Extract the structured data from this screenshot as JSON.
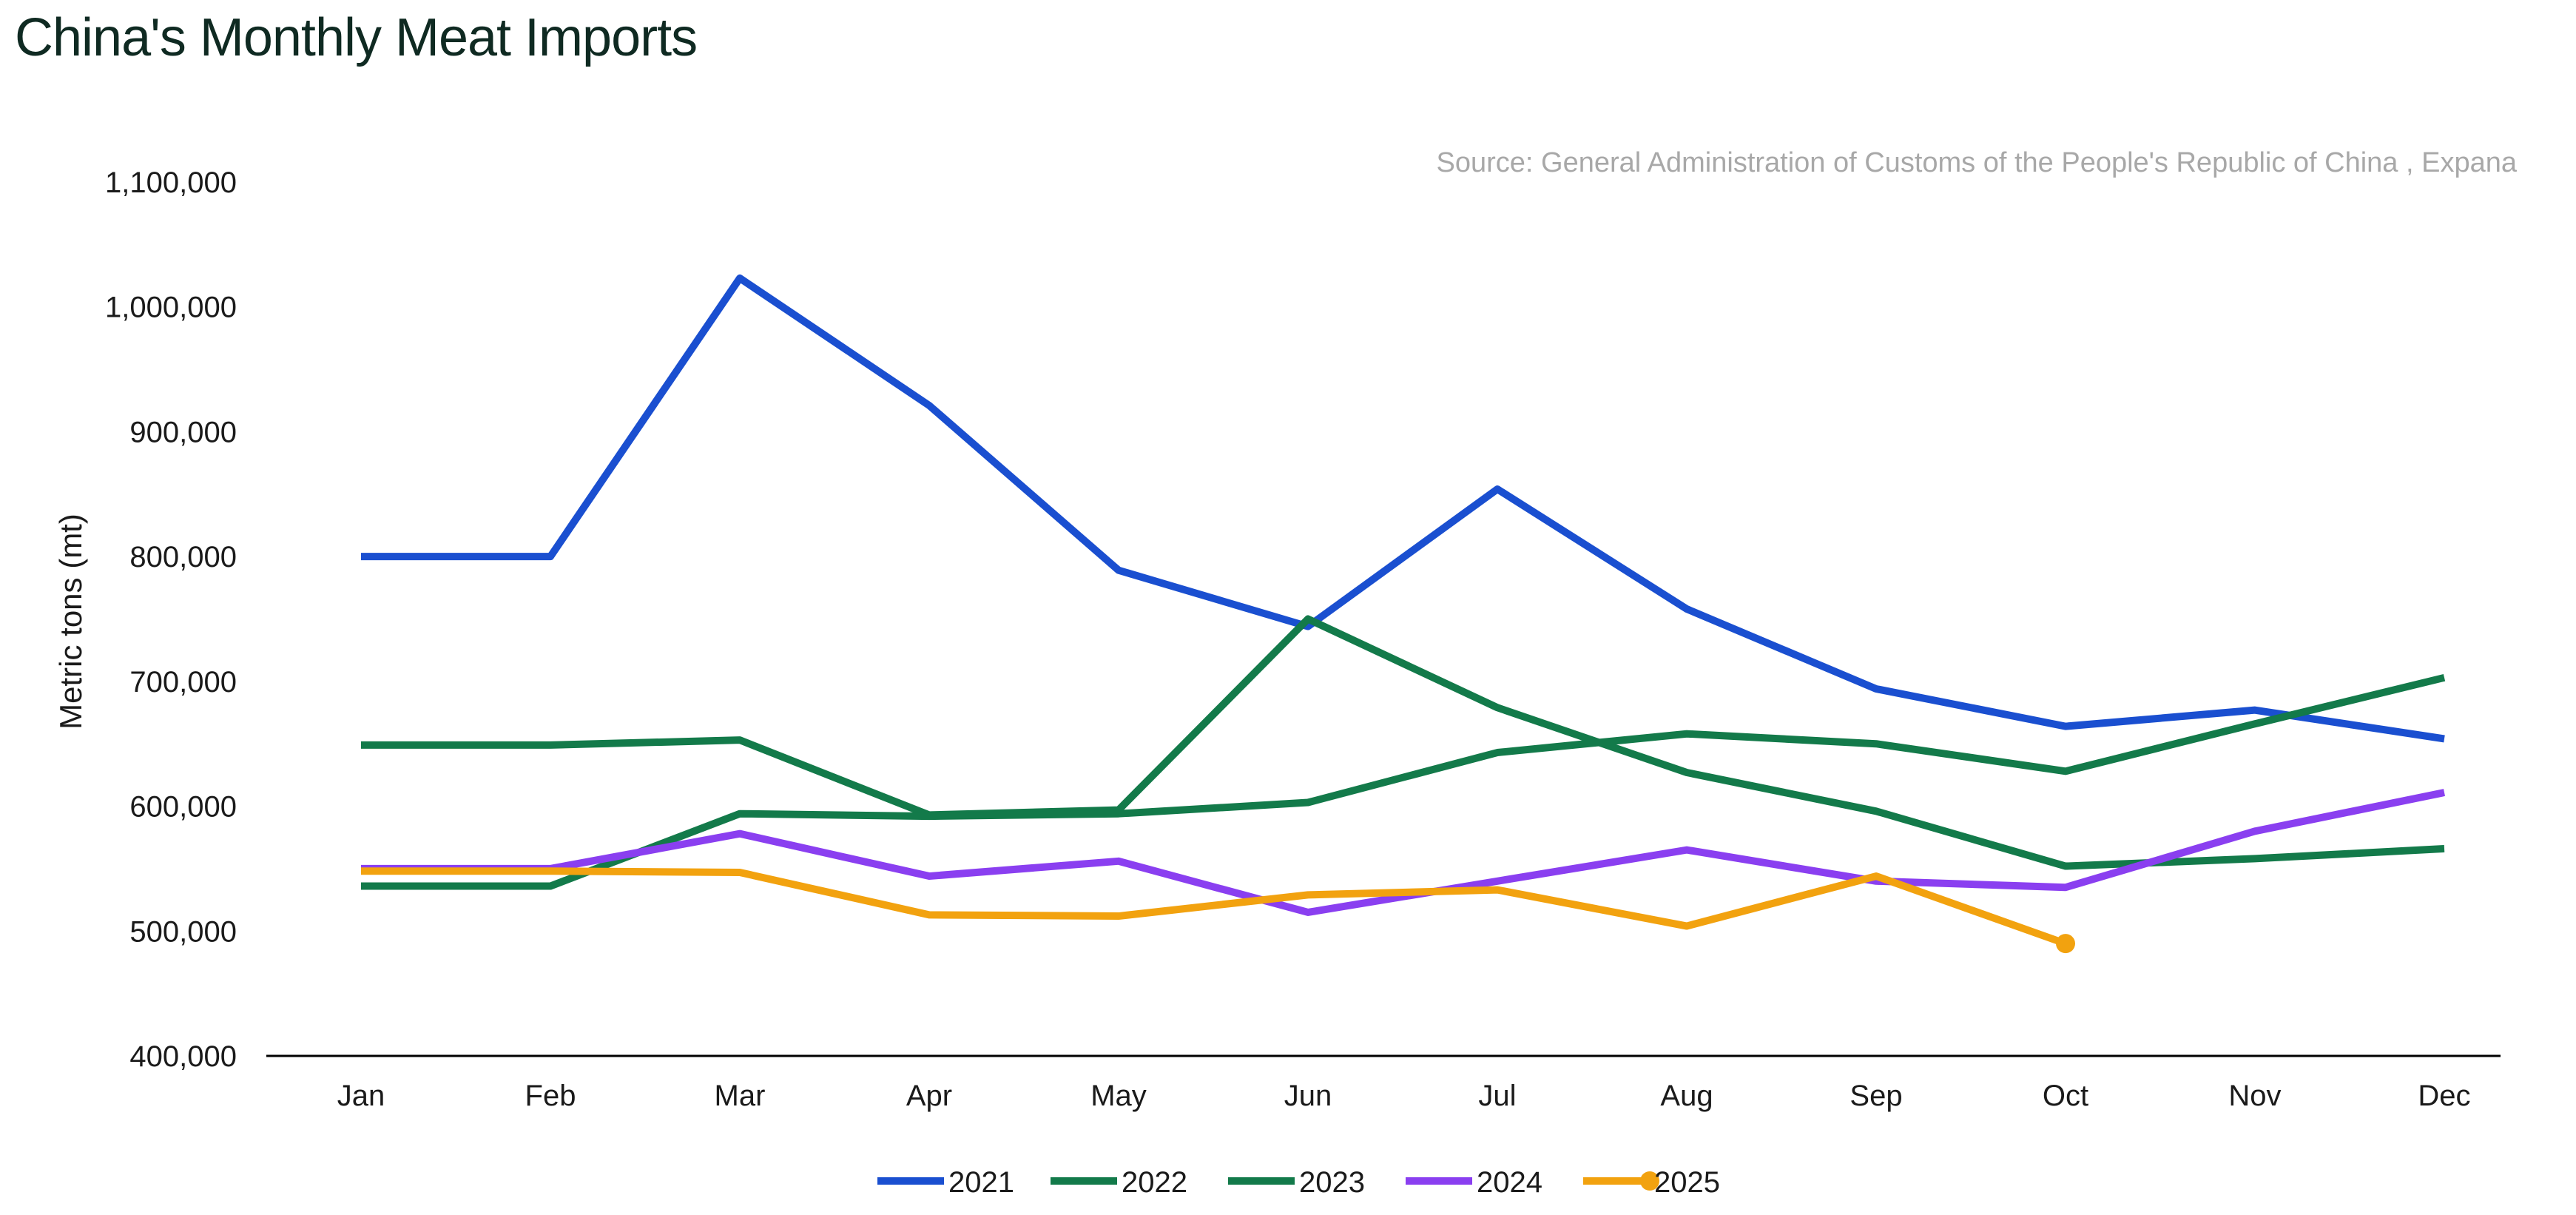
{
  "chart_data": {
    "type": "line",
    "title": "China's Monthly Meat Imports",
    "source": "Source: General Administration of Customs of the People's Republic of China , Expana",
    "xlabel": "",
    "ylabel": "Metric  tons (mt)",
    "categories": [
      "Jan",
      "Feb",
      "Mar",
      "Apr",
      "May",
      "Jun",
      "Jul",
      "Aug",
      "Sep",
      "Oct",
      "Nov",
      "Dec"
    ],
    "ylim": [
      400000,
      1100000
    ],
    "yticks": [
      400000,
      500000,
      600000,
      700000,
      800000,
      900000,
      1000000,
      1100000
    ],
    "ytick_labels": [
      "400,000",
      "500,000",
      "600,000",
      "700,000",
      "800,000",
      "900,000",
      "1,000,000",
      "1,100,000"
    ],
    "grid": false,
    "legend_position": "bottom-center",
    "series": [
      {
        "name": "2021",
        "color": "#1a4fd0",
        "values": [
          800000,
          800000,
          1023000,
          921000,
          789000,
          744000,
          854000,
          758000,
          694000,
          664000,
          677000,
          654000
        ]
      },
      {
        "name": "2022",
        "color": "#137a4a",
        "values": [
          649000,
          649000,
          653000,
          593000,
          597000,
          750000,
          679000,
          627000,
          596000,
          552000,
          558000,
          566000
        ]
      },
      {
        "name": "2023",
        "color": "#137a4a",
        "values": [
          536000,
          536000,
          594000,
          592000,
          594000,
          603000,
          643000,
          658000,
          650000,
          628000,
          666000,
          703000
        ]
      },
      {
        "name": "2024",
        "color": "#8a3ff0",
        "values": [
          550000,
          550000,
          578000,
          544000,
          556000,
          515000,
          540000,
          565000,
          540000,
          535000,
          580000,
          611000
        ]
      },
      {
        "name": "2025",
        "color": "#f2a20f",
        "end_marker": true,
        "values": [
          548000,
          548000,
          547000,
          513000,
          512000,
          529000,
          533000,
          504000,
          544000,
          490000,
          null,
          null
        ]
      }
    ]
  }
}
